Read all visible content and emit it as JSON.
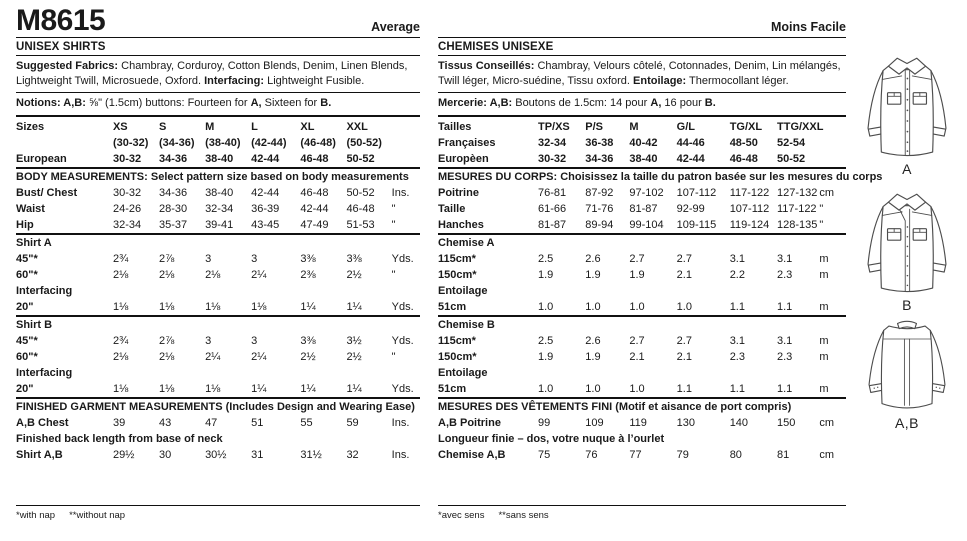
{
  "english": {
    "pattern_number": "M8615",
    "difficulty": "Average",
    "title": "UNISEX SHIRTS",
    "fabrics": [
      {
        "b": 1,
        "t": "Suggested Fabrics:"
      },
      {
        "t": " Chambray, Corduroy, Cotton Blends, Denim, Linen Blends, Lightweight Twill, Microsuede, Oxford. "
      },
      {
        "b": 1,
        "t": "Interfacing:"
      },
      {
        "t": " Lightweight Fusible."
      }
    ],
    "notions": [
      {
        "b": 1,
        "t": "Notions: A,B:"
      },
      {
        "t": " ⅝\" (1.5cm) buttons: Fourteen for "
      },
      {
        "b": 1,
        "t": "A,"
      },
      {
        "t": " Sixteen for "
      },
      {
        "b": 1,
        "t": "B."
      }
    ],
    "table": {
      "rows": [
        {
          "type": "h",
          "label": "Sizes",
          "cells": [
            "XS",
            "S",
            "M",
            "L",
            "XL",
            "XXL"
          ],
          "unit": ""
        },
        {
          "type": "h",
          "label": "",
          "cells": [
            "(30-32)",
            "(34-36)",
            "(38-40)",
            "(42-44)",
            "(46-48)",
            "(50-52)"
          ],
          "unit": ""
        },
        {
          "type": "h",
          "label": "European",
          "cells": [
            "30-32",
            "34-36",
            "38-40",
            "42-44",
            "46-48",
            "50-52"
          ],
          "unit": ""
        },
        {
          "type": "rule"
        },
        {
          "type": "s",
          "text": "BODY MEASUREMENTS: Select pattern size based on body measurements"
        },
        {
          "type": "r",
          "label": "Bust/ Chest",
          "cells": [
            "30-32",
            "34-36",
            "38-40",
            "42-44",
            "46-48",
            "50-52"
          ],
          "unit": "Ins."
        },
        {
          "type": "r",
          "label": "Waist",
          "cells": [
            "24-26",
            "28-30",
            "32-34",
            "36-39",
            "42-44",
            "46-48"
          ],
          "unit": "\""
        },
        {
          "type": "r",
          "label": "Hip",
          "cells": [
            "32-34",
            "35-37",
            "39-41",
            "43-45",
            "47-49",
            "51-53"
          ],
          "unit": "\""
        },
        {
          "type": "rule"
        },
        {
          "type": "s",
          "text": "Shirt A"
        },
        {
          "type": "r",
          "label": "45\"*",
          "cells": [
            "2¾",
            "2⅞",
            "3",
            "3",
            "3⅜",
            "3⅜"
          ],
          "unit": "Yds."
        },
        {
          "type": "r",
          "label": "60\"*",
          "cells": [
            "2⅛",
            "2⅛",
            "2⅛",
            "2¼",
            "2⅜",
            "2½"
          ],
          "unit": "\""
        },
        {
          "type": "s",
          "text": "Interfacing"
        },
        {
          "type": "r",
          "label": "20\"",
          "cells": [
            "1⅛",
            "1⅛",
            "1⅛",
            "1⅛",
            "1¼",
            "1¼"
          ],
          "unit": "Yds."
        },
        {
          "type": "rule"
        },
        {
          "type": "s",
          "text": "Shirt B"
        },
        {
          "type": "r",
          "label": "45\"*",
          "cells": [
            "2¾",
            "2⅞",
            "3",
            "3",
            "3⅜",
            "3½"
          ],
          "unit": "Yds."
        },
        {
          "type": "r",
          "label": "60\"*",
          "cells": [
            "2⅛",
            "2⅛",
            "2¼",
            "2¼",
            "2½",
            "2½"
          ],
          "unit": "\""
        },
        {
          "type": "s",
          "text": "Interfacing"
        },
        {
          "type": "r",
          "label": "20\"",
          "cells": [
            "1⅛",
            "1⅛",
            "1⅛",
            "1¼",
            "1¼",
            "1¼"
          ],
          "unit": "Yds."
        },
        {
          "type": "rule"
        },
        {
          "type": "s",
          "text": "FINISHED GARMENT MEASUREMENTS (Includes Design and Wearing Ease)"
        },
        {
          "type": "r",
          "label": "A,B Chest",
          "cells": [
            "39",
            "43",
            "47",
            "51",
            "55",
            "59"
          ],
          "unit": "Ins."
        },
        {
          "type": "s",
          "text": "Finished back length from base of neck"
        },
        {
          "type": "r",
          "label": "Shirt A,B",
          "cells": [
            "29½",
            "30",
            "30½",
            "31",
            "31½",
            "32"
          ],
          "unit": "Ins."
        }
      ]
    },
    "footnotes": [
      "*with nap",
      "**without nap"
    ]
  },
  "french": {
    "difficulty": "Moins Facile",
    "title": "CHEMISES UNISEXE",
    "fabrics": [
      {
        "b": 1,
        "t": "Tissus Conseillés:"
      },
      {
        "t": " Chambray, Velours côtelé, Cotonnades, Denim, Lin mélangés, Twill léger, Micro-suédine, Tissu oxford. "
      },
      {
        "b": 1,
        "t": "Entoilage:"
      },
      {
        "t": " Thermocollant léger."
      }
    ],
    "notions": [
      {
        "b": 1,
        "t": "Mercerie: A,B:"
      },
      {
        "t": " Boutons de 1.5cm: 14 pour "
      },
      {
        "b": 1,
        "t": "A,"
      },
      {
        "t": " 16 pour "
      },
      {
        "b": 1,
        "t": "B."
      }
    ],
    "table": {
      "rows": [
        {
          "type": "h",
          "label": "Tailles",
          "cells": [
            "TP/XS",
            "P/S",
            "M",
            "G/L",
            "TG/XL",
            "TTG/XXL"
          ],
          "unit": ""
        },
        {
          "type": "h",
          "label": "Françaises",
          "cells": [
            "32-34",
            "36-38",
            "40-42",
            "44-46",
            "48-50",
            "52-54"
          ],
          "unit": ""
        },
        {
          "type": "h",
          "label": "Europèen",
          "cells": [
            "30-32",
            "34-36",
            "38-40",
            "42-44",
            "46-48",
            "50-52"
          ],
          "unit": ""
        },
        {
          "type": "rule"
        },
        {
          "type": "s",
          "text": "MESURES DU CORPS: Choisissez la taille du patron basée sur les mesures du corps"
        },
        {
          "type": "r",
          "label": "Poitrine",
          "cells": [
            "76-81",
            "87-92",
            "97-102",
            "107-112",
            "117-122",
            "127-132"
          ],
          "unit": "cm"
        },
        {
          "type": "r",
          "label": "Taille",
          "cells": [
            "61-66",
            "71-76",
            "81-87",
            "92-99",
            "107-112",
            "117-122"
          ],
          "unit": "\""
        },
        {
          "type": "r",
          "label": "Hanches",
          "cells": [
            "81-87",
            "89-94",
            "99-104",
            "109-115",
            "119-124",
            "128-135"
          ],
          "unit": "\""
        },
        {
          "type": "rule"
        },
        {
          "type": "s",
          "text": "Chemise A"
        },
        {
          "type": "r",
          "label": "115cm*",
          "cells": [
            "2.5",
            "2.6",
            "2.7",
            "2.7",
            "3.1",
            "3.1"
          ],
          "unit": "m"
        },
        {
          "type": "r",
          "label": "150cm*",
          "cells": [
            "1.9",
            "1.9",
            "1.9",
            "2.1",
            "2.2",
            "2.3"
          ],
          "unit": "m"
        },
        {
          "type": "s",
          "text": "Entoilage"
        },
        {
          "type": "r",
          "label": "51cm",
          "cells": [
            "1.0",
            "1.0",
            "1.0",
            "1.0",
            "1.1",
            "1.1"
          ],
          "unit": "m"
        },
        {
          "type": "rule"
        },
        {
          "type": "s",
          "text": "Chemise B"
        },
        {
          "type": "r",
          "label": "115cm*",
          "cells": [
            "2.5",
            "2.6",
            "2.7",
            "2.7",
            "3.1",
            "3.1"
          ],
          "unit": "m"
        },
        {
          "type": "r",
          "label": "150cm*",
          "cells": [
            "1.9",
            "1.9",
            "2.1",
            "2.1",
            "2.3",
            "2.3"
          ],
          "unit": "m"
        },
        {
          "type": "s",
          "text": "Entoilage"
        },
        {
          "type": "r",
          "label": "51cm",
          "cells": [
            "1.0",
            "1.0",
            "1.0",
            "1.1",
            "1.1",
            "1.1"
          ],
          "unit": "m"
        },
        {
          "type": "rule"
        },
        {
          "type": "s",
          "text": "MESURES DES VÊTEMENTS FINI (Motif et aisance de port compris)"
        },
        {
          "type": "r",
          "label": "A,B Poitrine",
          "cells": [
            "99",
            "109",
            "119",
            "130",
            "140",
            "150"
          ],
          "unit": "cm"
        },
        {
          "type": "s",
          "text": "Longueur finie – dos, votre nuque à l’ourlet"
        },
        {
          "type": "r",
          "label": "Chemise A,B",
          "cells": [
            "75",
            "76",
            "77",
            "79",
            "80",
            "81"
          ],
          "unit": "cm"
        }
      ]
    },
    "footnotes": [
      "*avec sens",
      "**sans sens"
    ]
  },
  "illustrations": {
    "shirt_a_label": "A",
    "shirt_b_label": "B",
    "shirt_back_label": "A,B",
    "line_color": "#4d4d4d"
  }
}
